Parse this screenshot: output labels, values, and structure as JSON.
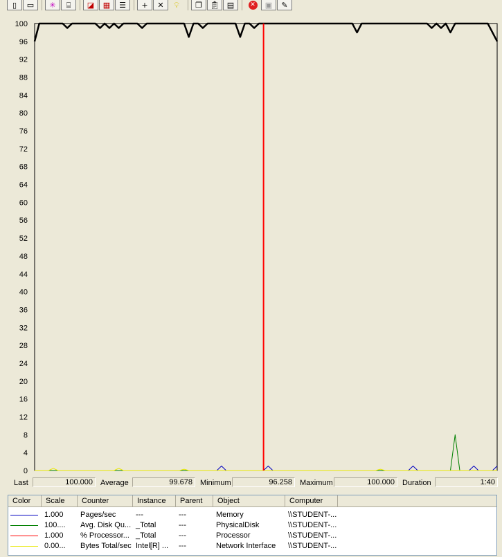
{
  "toolbar": {
    "groups": [
      [
        "new-counter-set-icon",
        "clear-display-icon",
        "view-current-activity-icon",
        "view-log-data-icon"
      ],
      [
        "view-graph-icon",
        "view-histogram-icon",
        "view-report-icon"
      ],
      [
        "add-counter-icon",
        "delete-counter-icon",
        "highlight-icon"
      ],
      [
        "copy-properties-icon",
        "paste-counter-list-icon",
        "properties-icon"
      ],
      [
        "freeze-display-icon",
        "update-data-icon",
        "help-icon"
      ]
    ]
  },
  "graph": {
    "y_ticks": [
      "100",
      "96",
      "92",
      "88",
      "84",
      "80",
      "76",
      "72",
      "68",
      "64",
      "60",
      "56",
      "52",
      "48",
      "44",
      "40",
      "36",
      "32",
      "28",
      "24",
      "20",
      "16",
      "12",
      "8",
      "4",
      "0"
    ]
  },
  "chart_data": {
    "type": "line",
    "ylim": [
      0,
      100
    ],
    "y_ticks": [
      100,
      96,
      92,
      88,
      84,
      80,
      76,
      72,
      68,
      64,
      60,
      56,
      52,
      48,
      44,
      40,
      36,
      32,
      28,
      24,
      20,
      16,
      12,
      8,
      4,
      0
    ],
    "x_samples": 100,
    "current_sample": 49,
    "series": [
      {
        "name": "% Processor...",
        "color": "#000000",
        "values": [
          96,
          100,
          100,
          100,
          100,
          100,
          100,
          99,
          100,
          100,
          100,
          100,
          100,
          100,
          99,
          100,
          99,
          100,
          99,
          100,
          100,
          100,
          100,
          99,
          100,
          100,
          100,
          100,
          100,
          100,
          100,
          100,
          100,
          97,
          100,
          100,
          99,
          100,
          100,
          100,
          100,
          100,
          100,
          100,
          97,
          100,
          100,
          99,
          100,
          100,
          100,
          100,
          100,
          100,
          100,
          100,
          100,
          100,
          100,
          100,
          100,
          100,
          100,
          100,
          100,
          100,
          100,
          100,
          100,
          98,
          100,
          100,
          100,
          100,
          100,
          100,
          100,
          100,
          100,
          100,
          100,
          100,
          100,
          100,
          100,
          99,
          100,
          99,
          100,
          98,
          100,
          100,
          100,
          100,
          100,
          100,
          100,
          100,
          98,
          96
        ]
      },
      {
        "name": "Pages/sec",
        "color": "#0000c0",
        "values": [
          0,
          0,
          0,
          0,
          0,
          0,
          0,
          0,
          0,
          0,
          0,
          0,
          0,
          0,
          0,
          0,
          0,
          0,
          0,
          0,
          0,
          0,
          0,
          0,
          0,
          0,
          0,
          0,
          0,
          0,
          0,
          0,
          0,
          0,
          0,
          0,
          0,
          0,
          0,
          0,
          1,
          0,
          0,
          0,
          0,
          0,
          0,
          0,
          0,
          0,
          1,
          0,
          0,
          0,
          0,
          0,
          0,
          0,
          0,
          0,
          0,
          0,
          0,
          0,
          0,
          0,
          0,
          0,
          0,
          0,
          0,
          0,
          0,
          0,
          0,
          0,
          0,
          0,
          0,
          0,
          0,
          1,
          0,
          0,
          0,
          0,
          0,
          0,
          0,
          0,
          0,
          0,
          0,
          0,
          1,
          0,
          0,
          0,
          0,
          1
        ]
      },
      {
        "name": "Avg. Disk Qu...",
        "color": "#008000",
        "values": [
          0,
          0,
          0,
          0,
          0,
          0,
          0,
          0,
          0,
          0,
          0,
          0,
          0,
          0,
          0,
          0,
          0,
          0,
          0,
          0,
          0,
          0,
          0,
          0,
          0,
          0,
          0,
          0,
          0,
          0,
          0,
          0,
          0,
          0,
          0,
          0,
          0,
          0,
          0,
          0,
          0,
          0,
          0,
          0,
          0,
          0,
          0,
          0,
          0,
          0,
          0,
          0,
          0,
          0,
          0,
          0,
          0,
          0,
          0,
          0,
          0,
          0,
          0,
          0,
          0,
          0,
          0,
          0,
          0,
          0,
          0,
          0,
          0,
          0,
          0,
          0,
          0,
          0,
          0,
          0,
          0,
          0,
          0,
          0,
          0,
          0,
          0,
          0,
          0,
          0,
          8,
          0,
          0,
          0,
          0,
          0,
          0,
          0,
          0,
          0
        ]
      },
      {
        "name": "Bytes Total/sec",
        "color": "#e8e800",
        "values": [
          0,
          0,
          0,
          0,
          0.5,
          0,
          0,
          0,
          0,
          0,
          0,
          0,
          0,
          0,
          0,
          0,
          0,
          0,
          0.5,
          0,
          0,
          0,
          0,
          0,
          0,
          0,
          0,
          0,
          0,
          0,
          0,
          0,
          0.3,
          0,
          0,
          0,
          0,
          0,
          0,
          0,
          0,
          0,
          0,
          0,
          0,
          0,
          0,
          0,
          0,
          0,
          0,
          0,
          0,
          0,
          0,
          0,
          0,
          0,
          0,
          0,
          0,
          0,
          0,
          0,
          0,
          0,
          0,
          0,
          0,
          0,
          0,
          0,
          0,
          0,
          0.3,
          0,
          0,
          0,
          0,
          0,
          0,
          0,
          0,
          0,
          0,
          0,
          0,
          0,
          0,
          0,
          0,
          0,
          0,
          0,
          0,
          0,
          0,
          0,
          0,
          0
        ]
      }
    ]
  },
  "value_bar": {
    "last_label": "Last",
    "last_value": "100.000",
    "average_label": "Average",
    "average_value": "99.678",
    "minimum_label": "Minimum",
    "minimum_value": "96.258",
    "maximum_label": "Maximum",
    "maximum_value": "100.000",
    "duration_label": "Duration",
    "duration_value": "1:40"
  },
  "legend": {
    "headers": [
      "Color",
      "Scale",
      "Counter",
      "Instance",
      "Parent",
      "Object",
      "Computer"
    ],
    "rows": [
      {
        "color": "#0000c0",
        "scale": "1.000",
        "counter": "Pages/sec",
        "instance": "---",
        "parent": "---",
        "object": "Memory",
        "computer": "\\\\STUDENT-..."
      },
      {
        "color": "#008000",
        "scale": "100....",
        "counter": "Avg. Disk Qu...",
        "instance": "_Total",
        "parent": "---",
        "object": "PhysicalDisk",
        "computer": "\\\\STUDENT-..."
      },
      {
        "color": "#ff0000",
        "scale": "1.000",
        "counter": "% Processor...",
        "instance": "_Total",
        "parent": "---",
        "object": "Processor",
        "computer": "\\\\STUDENT-..."
      },
      {
        "color": "#e8e800",
        "scale": "0.00...",
        "counter": "Bytes Total/sec",
        "instance": "Intel[R] ...",
        "parent": "---",
        "object": "Network Interface",
        "computer": "\\\\STUDENT-..."
      }
    ]
  }
}
